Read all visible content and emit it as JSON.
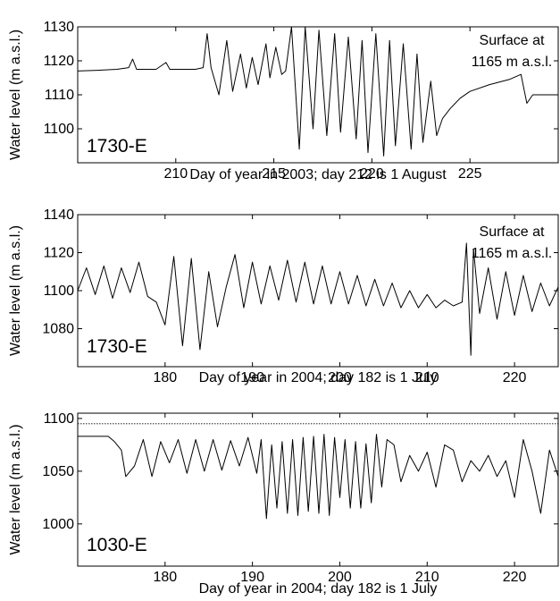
{
  "chart_data": [
    {
      "type": "line",
      "station": "1730-E",
      "xlabel": "Day of year in 2003;  day 212 is 1 August",
      "ylabel": "Water level (m a.s.l.)",
      "annotation": [
        "Surface at",
        "1165 m a.s.l."
      ],
      "xlim": [
        205,
        229.5
      ],
      "ylim": [
        1090,
        1130
      ],
      "xticks": [
        210,
        215,
        220,
        225
      ],
      "yticks": [
        1100,
        1110,
        1120,
        1130
      ],
      "x": [
        205,
        206,
        207,
        207.6,
        207.8,
        208,
        209,
        209.5,
        209.7,
        210,
        211,
        211.4,
        211.6,
        211.8,
        212.2,
        212.6,
        212.9,
        213.3,
        213.6,
        213.9,
        214.2,
        214.6,
        214.8,
        215.1,
        215.4,
        215.6,
        215.9,
        216.3,
        216.6,
        217.0,
        217.3,
        217.7,
        218.1,
        218.4,
        218.8,
        219.2,
        219.5,
        219.8,
        220.2,
        220.6,
        220.9,
        221.2,
        221.6,
        222.0,
        222.3,
        222.6,
        223.0,
        223.3,
        223.6,
        224,
        224.5,
        225,
        226,
        227,
        227.6,
        227.9,
        228.2,
        229.5
      ],
      "y": [
        1117,
        1117.2,
        1117.5,
        1118,
        1120.5,
        1117.5,
        1117.5,
        1119.5,
        1117.5,
        1117.5,
        1117.5,
        1118,
        1128,
        1118,
        1110,
        1126,
        1111,
        1122,
        1112,
        1121,
        1113,
        1125,
        1115,
        1124,
        1116,
        1117,
        1130,
        1094,
        1130,
        1100,
        1129,
        1098,
        1128,
        1099,
        1127,
        1097,
        1126,
        1093,
        1128,
        1092,
        1126,
        1095,
        1125,
        1094,
        1122,
        1096,
        1114,
        1098,
        1103,
        1106,
        1109,
        1111,
        1113,
        1114.5,
        1116,
        1107.5,
        1110,
        1110
      ]
    },
    {
      "type": "line",
      "station": "1730-E",
      "xlabel": "Day of year in 2004;  day 182 is 1 July",
      "ylabel": "Water level (m a.s.l.)",
      "annotation": [
        "Surface at",
        "1165 m a.s.l."
      ],
      "xlim": [
        170,
        225
      ],
      "ylim": [
        1060,
        1140
      ],
      "xticks": [
        180,
        190,
        200,
        210,
        220
      ],
      "yticks": [
        1080,
        1100,
        1120,
        1140
      ],
      "x": [
        170,
        171,
        172,
        173,
        174,
        175,
        176,
        177,
        178,
        179,
        180,
        181,
        182,
        183,
        184,
        185,
        186,
        187,
        188,
        189,
        190,
        191,
        192,
        193,
        194,
        195,
        196,
        197,
        198,
        199,
        200,
        201,
        202,
        203,
        204,
        205,
        206,
        207,
        208,
        209,
        210,
        211,
        212,
        213,
        214,
        214.5,
        215,
        215.3,
        216,
        217,
        218,
        219,
        220,
        221,
        222,
        223,
        224,
        225
      ],
      "y": [
        1100,
        1112,
        1098,
        1113,
        1096,
        1112,
        1099,
        1115,
        1097,
        1094,
        1082,
        1118,
        1071,
        1117,
        1069,
        1110,
        1081,
        1102,
        1119,
        1091,
        1115,
        1093,
        1113,
        1095,
        1116,
        1094,
        1115,
        1093,
        1113,
        1093,
        1110,
        1093,
        1108,
        1092,
        1106,
        1092,
        1104,
        1091,
        1100,
        1091,
        1098,
        1091,
        1095,
        1092,
        1094,
        1125,
        1066,
        1122,
        1088,
        1112,
        1085,
        1110,
        1087,
        1108,
        1089,
        1104,
        1092,
        1102
      ]
    },
    {
      "type": "line",
      "station": "1030-E",
      "xlabel": "Day of year in 2004;  day 182 is 1 July",
      "ylabel": "Water level (m a.s.l.)",
      "reference_line": 1095,
      "xlim": [
        170,
        225
      ],
      "ylim": [
        960,
        1105
      ],
      "xticks": [
        180,
        190,
        200,
        210,
        220
      ],
      "yticks": [
        1000,
        1050,
        1100
      ],
      "x": [
        170,
        172,
        173.5,
        174.2,
        175,
        175.5,
        176.5,
        177.5,
        178.5,
        179.5,
        180.5,
        181.5,
        182.5,
        183.5,
        184.5,
        185.5,
        186.5,
        187.5,
        188.5,
        189.5,
        190.5,
        191,
        191.6,
        192.2,
        192.8,
        193.4,
        194.0,
        194.6,
        195.2,
        195.8,
        196.4,
        197.0,
        197.6,
        198.2,
        198.8,
        199.4,
        200.0,
        200.6,
        201.2,
        201.8,
        202.4,
        203.0,
        203.6,
        204.2,
        204.8,
        205.4,
        206.2,
        207,
        208,
        209,
        210,
        211,
        212,
        213,
        214,
        215,
        216,
        217,
        218,
        219,
        220,
        221,
        222,
        223,
        224,
        225
      ],
      "y": [
        1083,
        1083,
        1083,
        1078,
        1070,
        1045,
        1055,
        1080,
        1045,
        1078,
        1058,
        1080,
        1048,
        1080,
        1050,
        1080,
        1051,
        1079,
        1055,
        1082,
        1048,
        1080,
        1005,
        1075,
        1015,
        1078,
        1010,
        1080,
        1008,
        1082,
        1012,
        1083,
        1010,
        1085,
        1008,
        1082,
        1025,
        1080,
        1015,
        1078,
        1015,
        1076,
        1020,
        1085,
        1035,
        1080,
        1075,
        1040,
        1065,
        1050,
        1068,
        1035,
        1075,
        1070,
        1040,
        1060,
        1050,
        1065,
        1045,
        1060,
        1025,
        1080,
        1050,
        1010,
        1070,
        1045
      ]
    }
  ]
}
